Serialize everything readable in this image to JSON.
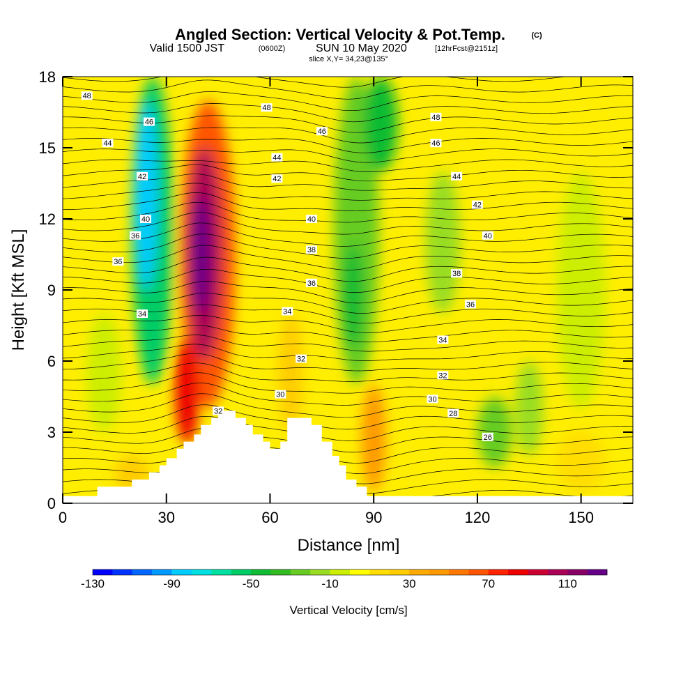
{
  "header": {
    "title": "Angled Section: Vertical Velocity & Pot.Temp.",
    "copyright": "(C)",
    "valid_prefix": "Valid 1500 JST",
    "valid_utc": "(0600Z)",
    "valid_date": "SUN 10 May 2020",
    "forecast": "[12hrFcst@2151z]",
    "slice": "slice X,Y= 34,23@135°"
  },
  "chart_data": {
    "type": "heatmap",
    "xlabel": "Distance [nm]",
    "ylabel": "Height [Kft MSL]",
    "xlim": [
      0,
      165
    ],
    "ylim": [
      0,
      18
    ],
    "x_ticks": [
      0,
      30,
      60,
      90,
      120,
      150
    ],
    "y_ticks": [
      0,
      3,
      6,
      9,
      12,
      15,
      18
    ],
    "shaded_field": "Vertical Velocity [cm/s]",
    "contour_field": "Potential temperature (C)",
    "velocity_features": [
      {
        "kind": "updraft",
        "x": 41,
        "z_top": 14.5,
        "peak_cm_s": 120
      },
      {
        "kind": "updraft",
        "x": 37,
        "z_top": 5,
        "peak_cm_s": 90
      },
      {
        "kind": "updraft",
        "x": 90,
        "z_top": 4,
        "peak_cm_s": 40
      },
      {
        "kind": "updraft",
        "x": 65,
        "z_top": 5,
        "peak_cm_s": 30
      },
      {
        "kind": "downdraft",
        "x": 26,
        "z_top": 18,
        "peak_cm_s": -80
      },
      {
        "kind": "downdraft",
        "x": 85,
        "z_top": 18,
        "peak_cm_s": -50
      },
      {
        "kind": "downdraft",
        "x": 125,
        "z_top": 4,
        "peak_cm_s": -30
      }
    ],
    "contour_labels": [
      {
        "text": "48",
        "x": 7,
        "z": 17.2
      },
      {
        "text": "46",
        "x": 25,
        "z": 16.1
      },
      {
        "text": "44",
        "x": 13,
        "z": 15.2
      },
      {
        "text": "42",
        "x": 23,
        "z": 13.8
      },
      {
        "text": "40",
        "x": 24,
        "z": 12.0
      },
      {
        "text": "36",
        "x": 21,
        "z": 11.3
      },
      {
        "text": "36",
        "x": 16,
        "z": 10.2
      },
      {
        "text": "34",
        "x": 23,
        "z": 8.0
      },
      {
        "text": "48",
        "x": 59,
        "z": 16.7
      },
      {
        "text": "46",
        "x": 75,
        "z": 15.7
      },
      {
        "text": "44",
        "x": 62,
        "z": 14.6
      },
      {
        "text": "42",
        "x": 62,
        "z": 13.7
      },
      {
        "text": "40",
        "x": 72,
        "z": 12.0
      },
      {
        "text": "38",
        "x": 72,
        "z": 10.7
      },
      {
        "text": "36",
        "x": 72,
        "z": 9.3
      },
      {
        "text": "34",
        "x": 65,
        "z": 8.1
      },
      {
        "text": "32",
        "x": 69,
        "z": 6.1
      },
      {
        "text": "30",
        "x": 63,
        "z": 4.6
      },
      {
        "text": "32",
        "x": 45,
        "z": 3.9
      },
      {
        "text": "48",
        "x": 108,
        "z": 16.3
      },
      {
        "text": "46",
        "x": 108,
        "z": 15.2
      },
      {
        "text": "44",
        "x": 114,
        "z": 13.8
      },
      {
        "text": "42",
        "x": 120,
        "z": 12.6
      },
      {
        "text": "40",
        "x": 123,
        "z": 11.3
      },
      {
        "text": "38",
        "x": 114,
        "z": 9.7
      },
      {
        "text": "36",
        "x": 118,
        "z": 8.4
      },
      {
        "text": "34",
        "x": 110,
        "z": 6.9
      },
      {
        "text": "32",
        "x": 110,
        "z": 5.4
      },
      {
        "text": "30",
        "x": 107,
        "z": 4.4
      },
      {
        "text": "28",
        "x": 113,
        "z": 3.8
      },
      {
        "text": "26",
        "x": 123,
        "z": 2.8
      }
    ],
    "terrain_profile": [
      [
        0,
        0.3
      ],
      [
        10,
        0.3
      ],
      [
        10,
        0.7
      ],
      [
        20,
        0.7
      ],
      [
        20,
        1.0
      ],
      [
        25,
        1.0
      ],
      [
        25,
        1.3
      ],
      [
        28,
        1.3
      ],
      [
        28,
        1.6
      ],
      [
        30,
        1.6
      ],
      [
        30,
        1.9
      ],
      [
        33,
        1.9
      ],
      [
        33,
        2.3
      ],
      [
        35,
        2.3
      ],
      [
        35,
        2.6
      ],
      [
        38,
        2.6
      ],
      [
        38,
        2.9
      ],
      [
        40,
        2.9
      ],
      [
        40,
        3.3
      ],
      [
        43,
        3.3
      ],
      [
        43,
        3.6
      ],
      [
        45,
        3.6
      ],
      [
        45,
        3.9
      ],
      [
        50,
        3.9
      ],
      [
        50,
        3.6
      ],
      [
        53,
        3.6
      ],
      [
        53,
        3.3
      ],
      [
        55,
        3.3
      ],
      [
        55,
        2.9
      ],
      [
        58,
        2.9
      ],
      [
        58,
        2.6
      ],
      [
        60,
        2.6
      ],
      [
        60,
        2.3
      ],
      [
        63,
        2.3
      ],
      [
        63,
        2.6
      ],
      [
        65,
        2.6
      ],
      [
        65,
        3.6
      ],
      [
        72,
        3.6
      ],
      [
        72,
        3.3
      ],
      [
        75,
        3.3
      ],
      [
        75,
        2.6
      ],
      [
        78,
        2.6
      ],
      [
        78,
        2.0
      ],
      [
        80,
        2.0
      ],
      [
        80,
        1.6
      ],
      [
        82,
        1.6
      ],
      [
        82,
        1.0
      ],
      [
        85,
        1.0
      ],
      [
        85,
        0.7
      ],
      [
        88,
        0.7
      ],
      [
        88,
        0.3
      ],
      [
        165,
        0.3
      ]
    ],
    "colorbar": {
      "label": "Vertical Velocity [cm/s]",
      "range": [
        -130,
        130
      ],
      "tick_labels": [
        "-130",
        "-90",
        "-50",
        "-10",
        "30",
        "70",
        "110"
      ],
      "tick_values": [
        -130,
        -90,
        -50,
        -10,
        30,
        70,
        110
      ],
      "colors": [
        "#0000ff",
        "#0033ff",
        "#0066ff",
        "#0099ff",
        "#00ccff",
        "#00e0e0",
        "#00e0a0",
        "#00cc66",
        "#11bb33",
        "#33bb22",
        "#66cc22",
        "#99dd22",
        "#ccee00",
        "#ffff00",
        "#ffdd00",
        "#ffcc00",
        "#ffaa00",
        "#ff9900",
        "#ff7700",
        "#ff5500",
        "#ff2200",
        "#ee0000",
        "#cc0033",
        "#aa0055",
        "#880066",
        "#660088"
      ]
    }
  }
}
